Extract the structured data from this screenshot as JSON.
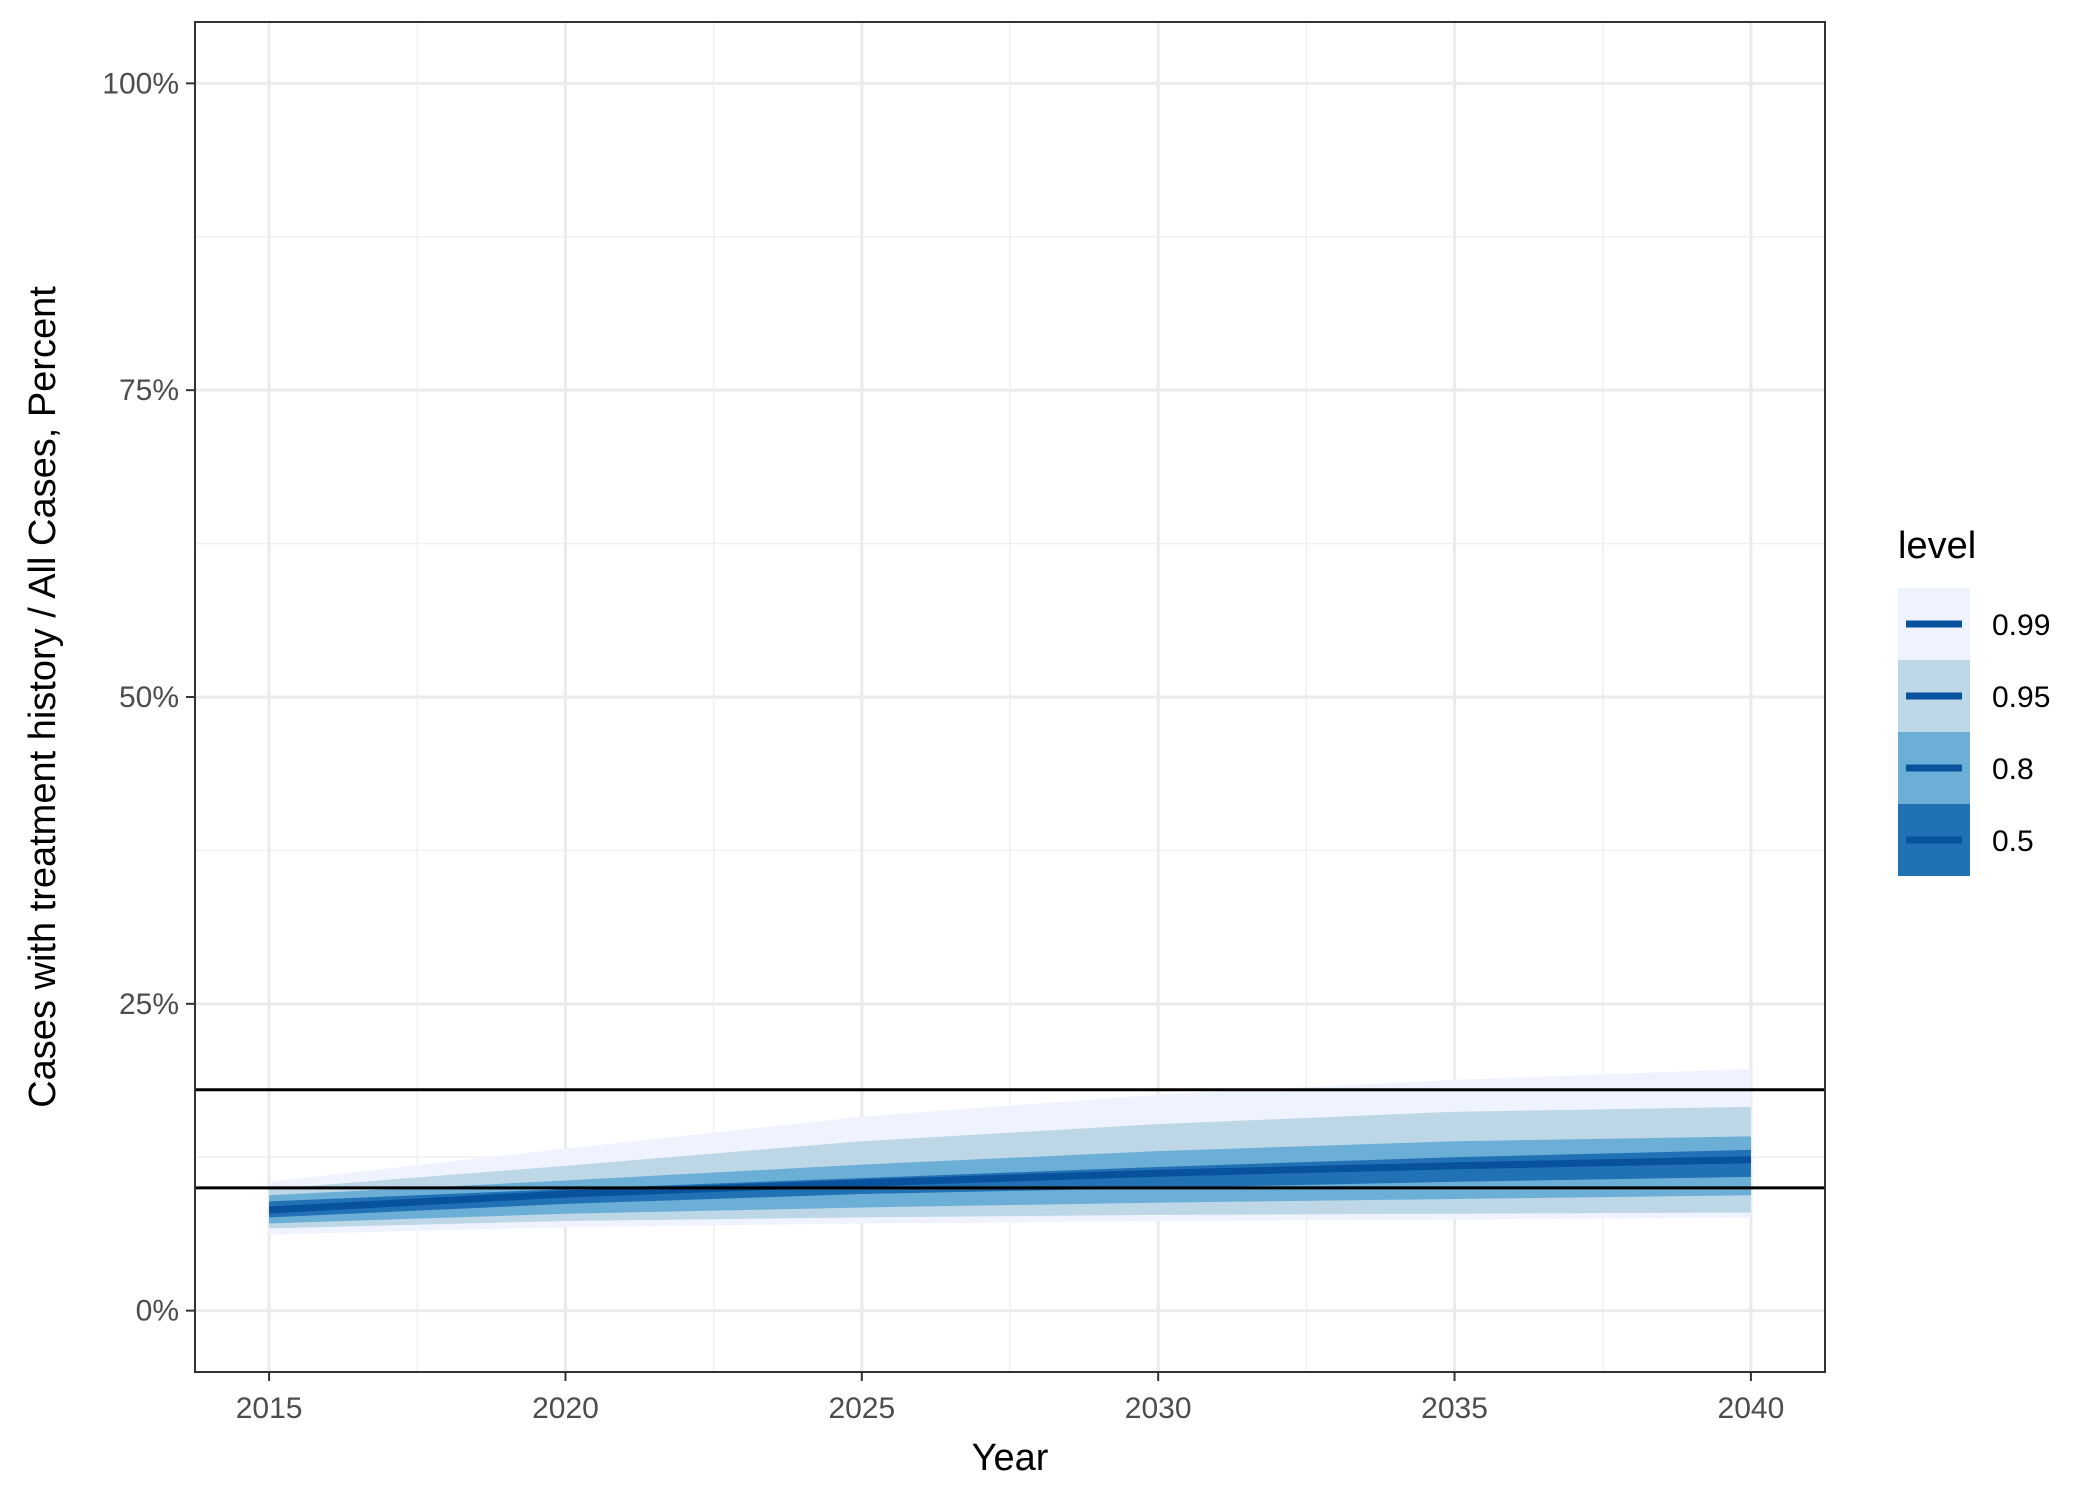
{
  "chart_data": {
    "type": "area",
    "xlabel": "Year",
    "ylabel": "Cases with treatment history / All Cases, Percent",
    "xlim": [
      2013.75,
      2041.25
    ],
    "ylim": [
      -5,
      105
    ],
    "x_ticks": [
      2015,
      2020,
      2025,
      2030,
      2035,
      2040
    ],
    "x_tick_labels": [
      "2015",
      "2020",
      "2025",
      "2030",
      "2035",
      "2040"
    ],
    "y_ticks": [
      0,
      25,
      50,
      75,
      100
    ],
    "y_tick_labels": [
      "0%",
      "25%",
      "50%",
      "75%",
      "100%"
    ],
    "grid": true,
    "legend_position": "right",
    "legend_title": "level",
    "x": [
      2015,
      2020,
      2025,
      2030,
      2035,
      2040
    ],
    "median": [
      8.2,
      9.5,
      10.4,
      11.2,
      11.8,
      12.3
    ],
    "bands": [
      {
        "level": "0.99",
        "color": "#eff3ff",
        "lower": [
          6.2,
          6.8,
          7.1,
          7.3,
          7.4,
          7.6
        ],
        "upper": [
          10.5,
          13.2,
          15.8,
          17.6,
          18.8,
          19.7
        ]
      },
      {
        "level": "0.95",
        "color": "#bdd7e7",
        "lower": [
          6.7,
          7.3,
          7.6,
          7.8,
          7.9,
          8.0
        ],
        "upper": [
          9.9,
          11.8,
          13.8,
          15.2,
          16.2,
          16.6
        ]
      },
      {
        "level": "0.8",
        "color": "#6baed6",
        "lower": [
          7.1,
          7.9,
          8.4,
          8.8,
          9.1,
          9.4
        ],
        "upper": [
          9.4,
          10.6,
          11.9,
          13.0,
          13.8,
          14.2
        ]
      },
      {
        "level": "0.5",
        "color": "#2171b5",
        "lower": [
          7.6,
          8.7,
          9.5,
          10.0,
          10.5,
          10.9
        ],
        "upper": [
          8.9,
          9.9,
          10.8,
          11.7,
          12.5,
          13.1
        ]
      }
    ],
    "median_color": "#08519c",
    "reference_lines": [
      18,
      10
    ],
    "reference_line_color": "#000000",
    "legend": [
      {
        "label": "0.99",
        "color": "#eff3ff"
      },
      {
        "label": "0.95",
        "color": "#bdd7e7"
      },
      {
        "label": "0.8",
        "color": "#6baed6"
      },
      {
        "label": "0.5",
        "color": "#2171b5"
      }
    ]
  }
}
